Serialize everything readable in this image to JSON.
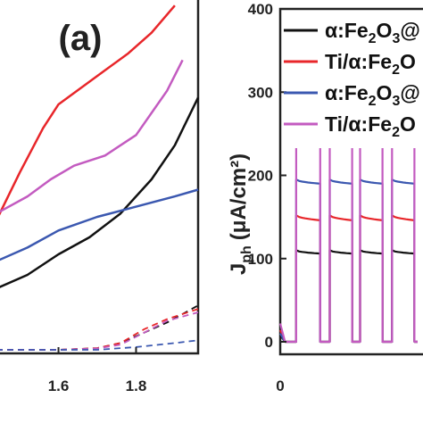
{
  "chart_data": [
    {
      "type": "line",
      "panel_label": "(a)",
      "xlabel": "",
      "ylabel": "",
      "xlim": [
        1.44,
        1.96
      ],
      "x_ticks": [
        1.6,
        1.8
      ],
      "x_tick_labels": [
        "1.6",
        "1.8"
      ],
      "series": [
        {
          "color": "#111111",
          "style": "solid",
          "x": [
            1.44,
            1.52,
            1.6,
            1.68,
            1.76,
            1.84,
            1.9,
            1.96
          ],
          "y": [
            0.18,
            0.22,
            0.28,
            0.33,
            0.4,
            0.5,
            0.6,
            0.74
          ]
        },
        {
          "color": "#e8262a",
          "style": "solid",
          "x": [
            1.44,
            1.5,
            1.56,
            1.6,
            1.66,
            1.72,
            1.78,
            1.84,
            1.9
          ],
          "y": [
            0.38,
            0.52,
            0.65,
            0.72,
            0.77,
            0.82,
            0.87,
            0.93,
            1.01
          ]
        },
        {
          "color": "#3b58b0",
          "style": "solid",
          "x": [
            1.44,
            1.52,
            1.6,
            1.7,
            1.8,
            1.9,
            1.96
          ],
          "y": [
            0.26,
            0.3,
            0.35,
            0.39,
            0.42,
            0.45,
            0.47
          ]
        },
        {
          "color": "#c35bc0",
          "style": "solid",
          "x": [
            1.44,
            1.52,
            1.58,
            1.64,
            1.72,
            1.8,
            1.88,
            1.92
          ],
          "y": [
            0.4,
            0.45,
            0.5,
            0.54,
            0.57,
            0.63,
            0.76,
            0.85
          ]
        },
        {
          "color": "#111111",
          "style": "dashed",
          "x": [
            1.44,
            1.6,
            1.7,
            1.76,
            1.82,
            1.88,
            1.96
          ],
          "y": [
            0.0,
            0.0,
            0.005,
            0.02,
            0.05,
            0.08,
            0.13
          ]
        },
        {
          "color": "#e8262a",
          "style": "dashed",
          "x": [
            1.44,
            1.6,
            1.7,
            1.76,
            1.82,
            1.88,
            1.96
          ],
          "y": [
            0.0,
            0.0,
            0.005,
            0.02,
            0.06,
            0.09,
            0.12
          ]
        },
        {
          "color": "#c35bc0",
          "style": "dashed",
          "x": [
            1.44,
            1.6,
            1.7,
            1.76,
            1.82,
            1.88,
            1.96
          ],
          "y": [
            0.0,
            0.0,
            0.004,
            0.015,
            0.05,
            0.085,
            0.11
          ]
        },
        {
          "color": "#3b58b0",
          "style": "dashed",
          "x": [
            1.44,
            1.7,
            1.8,
            1.9,
            1.96
          ],
          "y": [
            0.0,
            0.0,
            0.008,
            0.02,
            0.028
          ]
        }
      ]
    },
    {
      "type": "line",
      "xlabel": "",
      "ylabel_main": "J",
      "ylabel_sub": "ph",
      "ylabel_unit": "(μA/cm²)",
      "ylim": [
        -15,
        400
      ],
      "y_ticks": [
        0,
        100,
        200,
        300,
        400
      ],
      "y_tick_labels": [
        "0",
        "100",
        "200",
        "300",
        "400"
      ],
      "x_tick_labels": [
        "0"
      ],
      "legend_placement": "top-right",
      "legend": [
        {
          "color": "#111111",
          "prefix": "α:Fe",
          "sub1": "2",
          "mid": "O",
          "sub2": "3",
          "suffix": "@"
        },
        {
          "color": "#e8262a",
          "prefix": "Ti/α:Fe",
          "sub1": "2",
          "mid": "O",
          "sub2": "",
          "suffix": ""
        },
        {
          "color": "#3b58b0",
          "prefix": "α:Fe",
          "sub1": "2",
          "mid": "O",
          "sub2": "3",
          "suffix": "@"
        },
        {
          "color": "#c35bc0",
          "prefix": "Ti/α:Fe",
          "sub1": "2",
          "mid": "O",
          "sub2": "",
          "suffix": ""
        }
      ],
      "pulses": [
        [
          5,
          12.5
        ],
        [
          15.5,
          22.5
        ],
        [
          25,
          32
        ],
        [
          35,
          42
        ]
      ],
      "t_range": [
        0,
        43
      ],
      "series": [
        {
          "color": "#111111",
          "on_start": 110,
          "on_end": 106,
          "spike": 8
        },
        {
          "color": "#e8262a",
          "on_start": 152,
          "on_end": 146,
          "spike": 14
        },
        {
          "color": "#3b58b0",
          "on_start": 195,
          "on_end": 190,
          "spike": 10
        },
        {
          "color": "#c35bc0",
          "on_start": 256,
          "on_end": 248,
          "spike": 22
        }
      ]
    }
  ]
}
